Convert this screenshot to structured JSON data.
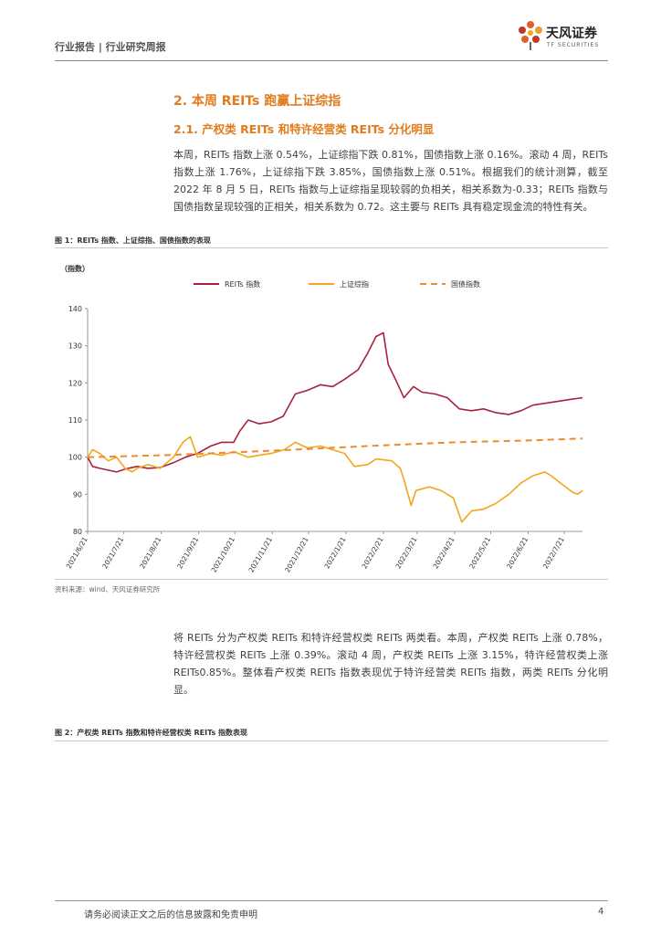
{
  "header": {
    "left_text": "行业报告 | 行业研究周报",
    "logo_name": "天风证券",
    "logo_en": "TF SECURITIES"
  },
  "section": {
    "h2": "2. 本周 REITs 跑赢上证综指",
    "h3": "2.1. 产权类 REITs 和特许经营类 REITs 分化明显"
  },
  "paragraphs": {
    "p1": "本周，REITs 指数上涨 0.54%，上证综指下跌 0.81%，国债指数上涨 0.16%。滚动 4 周，REITs 指数上涨 1.76%，上证综指下跌 3.85%，国债指数上涨 0.51%。根据我们的统计测算，截至 2022 年 8 月 5 日，REITs 指数与上证综指呈现较弱的负相关，相关系数为-0.33；REITs 指数与国债指数呈现较强的正相关，相关系数为 0.72。这主要与 REITs 具有稳定现金流的特性有关。",
    "p2": "将 REITs 分为产权类 REITs 和特许经营权类 REITs 两类看。本周，产权类 REITs 上涨 0.78%，特许经营权类 REITs 上涨 0.39%。滚动 4 周，产权类 REITs 上涨 3.15%，特许经营权类上涨 REITs0.85%。整体看产权类 REITs 指数表现优于特许经营类 REITs 指数，两类 REITs 分化明显。"
  },
  "figure1": {
    "caption": "图 1：REITs 指数、上证综指、国债指数的表现",
    "source": "资料来源：wind、天风证券研究所"
  },
  "figure2": {
    "caption": "图 2：产权类 REITs 指数和特许经营权类 REITs 指数表现"
  },
  "footer": {
    "disclaimer": "请务必阅读正文之后的信息披露和免责申明",
    "page": "4"
  },
  "chart_data": {
    "type": "line",
    "ylabel": "（指数）",
    "ylim": [
      80,
      140
    ],
    "yticks": [
      80,
      90,
      100,
      110,
      120,
      130,
      140
    ],
    "x_ticks": [
      "2021/6/21",
      "2021/7/21",
      "2021/8/21",
      "2021/9/21",
      "2021/10/21",
      "2021/11/21",
      "2021/12/21",
      "2022/1/21",
      "2022/2/21",
      "2022/3/21",
      "2022/4/21",
      "2022/5/21",
      "2022/6/21",
      "2022/7/21"
    ],
    "x_range": [
      "2021/6/21",
      "2022/8/5"
    ],
    "legend_position": "top",
    "grid": false,
    "colors": {
      "reits": "#a8213c",
      "sse": "#f4a61c",
      "bond": "#ee8a30"
    },
    "series": [
      {
        "name": "REITs 指数",
        "style": "solid",
        "points": [
          [
            "2021/6/21",
            100
          ],
          [
            "2021/6/25",
            97.5
          ],
          [
            "2021/7/1",
            97
          ],
          [
            "2021/7/8",
            96.5
          ],
          [
            "2021/7/15",
            96
          ],
          [
            "2021/7/22",
            96.8
          ],
          [
            "2021/8/1",
            97.5
          ],
          [
            "2021/8/10",
            97
          ],
          [
            "2021/8/20",
            97.2
          ],
          [
            "2021/8/31",
            98.5
          ],
          [
            "2021/9/10",
            100
          ],
          [
            "2021/9/20",
            101
          ],
          [
            "2021/10/1",
            103
          ],
          [
            "2021/10/10",
            104
          ],
          [
            "2021/10/20",
            104
          ],
          [
            "2021/10/25",
            107
          ],
          [
            "2021/11/1",
            110
          ],
          [
            "2021/11/10",
            109
          ],
          [
            "2021/11/20",
            109.5
          ],
          [
            "2021/11/30",
            111
          ],
          [
            "2021/12/10",
            117
          ],
          [
            "2021/12/20",
            118
          ],
          [
            "2021/12/31",
            119.5
          ],
          [
            "2022/1/10",
            119
          ],
          [
            "2022/1/20",
            121
          ],
          [
            "2022/1/31",
            123.5
          ],
          [
            "2022/2/8",
            128
          ],
          [
            "2022/2/15",
            132.5
          ],
          [
            "2022/2/21",
            133.5
          ],
          [
            "2022/2/25",
            125
          ],
          [
            "2022/3/3",
            121
          ],
          [
            "2022/3/10",
            116
          ],
          [
            "2022/3/18",
            119
          ],
          [
            "2022/3/25",
            117.5
          ],
          [
            "2022/4/5",
            117
          ],
          [
            "2022/4/15",
            116
          ],
          [
            "2022/4/25",
            113
          ],
          [
            "2022/5/5",
            112.5
          ],
          [
            "2022/5/15",
            113
          ],
          [
            "2022/5/25",
            112
          ],
          [
            "2022/6/5",
            111.5
          ],
          [
            "2022/6/15",
            112.5
          ],
          [
            "2022/6/25",
            114
          ],
          [
            "2022/7/5",
            114.5
          ],
          [
            "2022/7/15",
            115
          ],
          [
            "2022/7/25",
            115.5
          ],
          [
            "2022/8/5",
            116
          ]
        ]
      },
      {
        "name": "上证综指",
        "style": "solid",
        "points": [
          [
            "2021/6/21",
            100
          ],
          [
            "2021/6/25",
            102
          ],
          [
            "2021/7/1",
            101
          ],
          [
            "2021/7/8",
            99
          ],
          [
            "2021/7/15",
            100
          ],
          [
            "2021/7/22",
            97
          ],
          [
            "2021/7/28",
            96
          ],
          [
            "2021/8/1",
            97
          ],
          [
            "2021/8/10",
            98
          ],
          [
            "2021/8/20",
            97
          ],
          [
            "2021/8/31",
            100
          ],
          [
            "2021/9/8",
            104
          ],
          [
            "2021/9/14",
            105.5
          ],
          [
            "2021/9/20",
            100
          ],
          [
            "2021/10/1",
            101
          ],
          [
            "2021/10/10",
            100.5
          ],
          [
            "2021/10/20",
            101.5
          ],
          [
            "2021/11/1",
            100
          ],
          [
            "2021/11/10",
            100.5
          ],
          [
            "2021/11/20",
            101
          ],
          [
            "2021/12/1",
            102
          ],
          [
            "2021/12/10",
            104
          ],
          [
            "2021/12/20",
            102.5
          ],
          [
            "2021/12/31",
            103
          ],
          [
            "2022/1/10",
            102
          ],
          [
            "2022/1/20",
            101
          ],
          [
            "2022/1/28",
            97.5
          ],
          [
            "2022/2/8",
            98
          ],
          [
            "2022/2/15",
            99.5
          ],
          [
            "2022/2/28",
            99
          ],
          [
            "2022/3/7",
            97
          ],
          [
            "2022/3/10",
            94
          ],
          [
            "2022/3/16",
            87
          ],
          [
            "2022/3/20",
            91
          ],
          [
            "2022/3/31",
            92
          ],
          [
            "2022/4/10",
            91
          ],
          [
            "2022/4/20",
            89
          ],
          [
            "2022/4/27",
            82.5
          ],
          [
            "2022/5/5",
            85.5
          ],
          [
            "2022/5/15",
            86
          ],
          [
            "2022/5/25",
            87.5
          ],
          [
            "2022/6/5",
            90
          ],
          [
            "2022/6/15",
            93
          ],
          [
            "2022/6/25",
            95
          ],
          [
            "2022/7/5",
            96
          ],
          [
            "2022/7/10",
            95
          ],
          [
            "2022/7/20",
            92.5
          ],
          [
            "2022/7/28",
            90.5
          ],
          [
            "2022/8/1",
            90
          ],
          [
            "2022/8/5",
            91
          ]
        ]
      },
      {
        "name": "国债指数",
        "style": "dashed",
        "points": [
          [
            "2021/6/21",
            100
          ],
          [
            "2021/8/21",
            100.5
          ],
          [
            "2021/10/21",
            101.3
          ],
          [
            "2021/12/21",
            102.2
          ],
          [
            "2022/2/21",
            103.2
          ],
          [
            "2022/4/21",
            104
          ],
          [
            "2022/6/21",
            104.5
          ],
          [
            "2022/8/5",
            105
          ]
        ]
      }
    ]
  }
}
